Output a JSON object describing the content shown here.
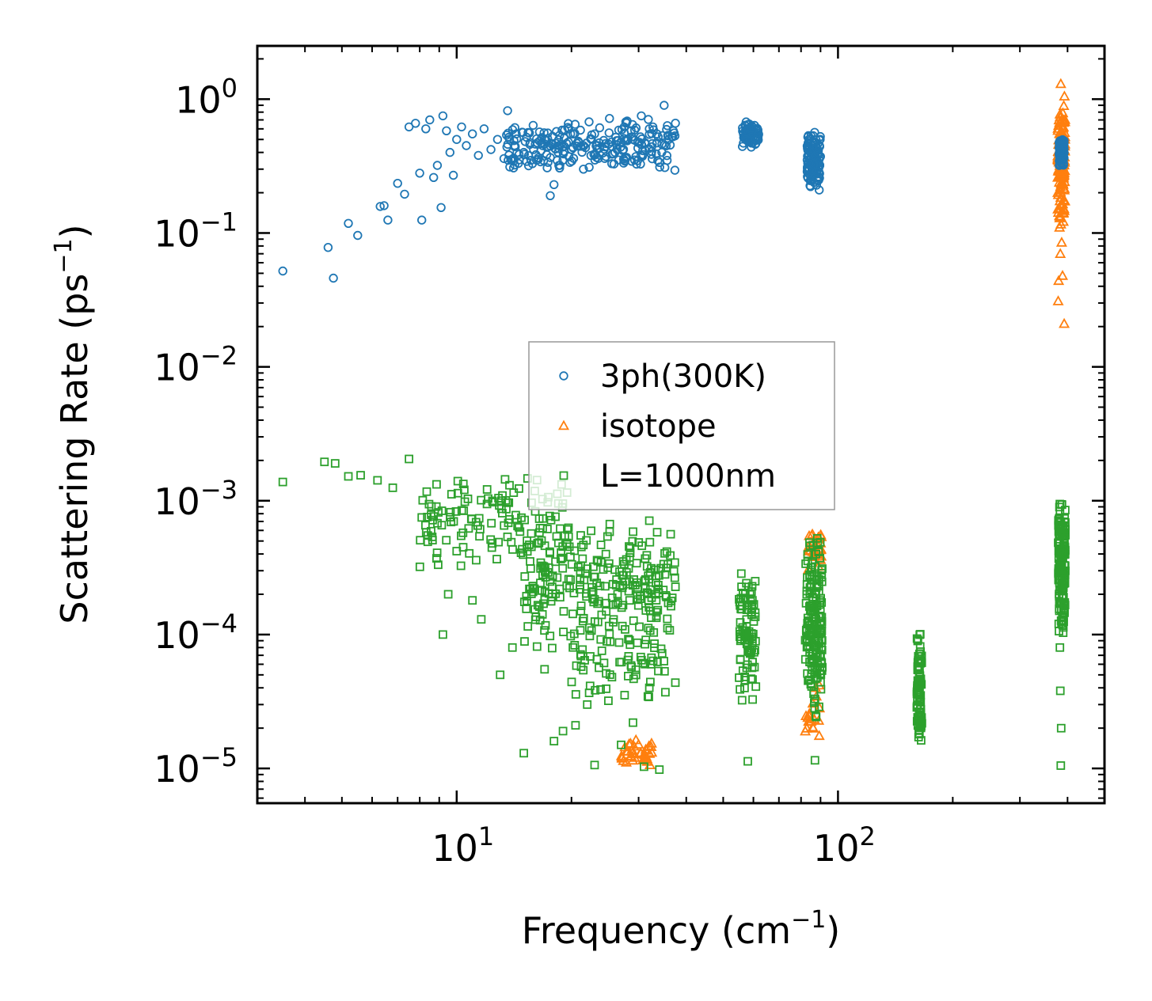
{
  "chart_data": {
    "type": "scatter",
    "xscale": "log",
    "yscale": "log",
    "xlim": [
      3.0,
      500
    ],
    "ylim": [
      5.5e-06,
      2.5
    ],
    "xlabel": {
      "text": "Frequency (cm",
      "sup": "−1",
      "close": ")"
    },
    "ylabel": {
      "text": "Scattering Rate (ps",
      "sup": "−1",
      "close": ")"
    },
    "x_ticks": [
      {
        "value": 10,
        "base": "10",
        "exp": "1"
      },
      {
        "value": 100,
        "base": "10",
        "exp": "2"
      }
    ],
    "y_ticks": [
      {
        "value": 1,
        "base": "10",
        "exp": "0"
      },
      {
        "value": 0.1,
        "base": "10",
        "exp": "−1"
      },
      {
        "value": 0.01,
        "base": "10",
        "exp": "−2"
      },
      {
        "value": 0.001,
        "base": "10",
        "exp": "−3"
      },
      {
        "value": 0.0001,
        "base": "10",
        "exp": "−4"
      },
      {
        "value": 1e-05,
        "base": "10",
        "exp": "−5"
      }
    ],
    "legend": {
      "position": "center",
      "entries": [
        {
          "label": "3ph(300K)",
          "series": "3ph",
          "color": "#1f77b4"
        },
        {
          "label": "isotope",
          "series": "isotope",
          "color": "#ff7f0e"
        },
        {
          "label": "L=1000nm",
          "series": "boundary",
          "color": "#2ca02c"
        }
      ]
    },
    "series": [
      {
        "name": "3ph(300K)",
        "marker": "circle",
        "color": "#1f77b4",
        "points": [
          [
            3.5,
            0.052
          ],
          [
            4.6,
            0.078
          ],
          [
            4.75,
            0.046
          ],
          [
            5.2,
            0.118
          ],
          [
            5.5,
            0.096
          ],
          [
            6.3,
            0.158
          ],
          [
            6.45,
            0.16
          ],
          [
            6.6,
            0.125
          ],
          [
            7.0,
            0.235
          ],
          [
            7.3,
            0.195
          ],
          [
            7.5,
            0.62
          ],
          [
            7.8,
            0.66
          ],
          [
            8.0,
            0.28
          ],
          [
            8.1,
            0.125
          ],
          [
            8.3,
            0.6
          ],
          [
            8.5,
            0.7
          ],
          [
            8.7,
            0.26
          ],
          [
            8.9,
            0.32
          ],
          [
            9.1,
            0.155
          ],
          [
            9.2,
            0.75
          ],
          [
            9.4,
            0.58
          ],
          [
            9.6,
            0.4
          ],
          [
            9.8,
            0.27
          ],
          [
            10.0,
            0.5
          ],
          [
            10.3,
            0.62
          ],
          [
            10.6,
            0.45
          ],
          [
            11.0,
            0.55
          ],
          [
            11.4,
            0.38
          ],
          [
            11.8,
            0.6
          ],
          [
            12.3,
            0.42
          ],
          [
            12.8,
            0.5
          ],
          [
            13.3,
            0.36
          ],
          [
            13.6,
            0.82
          ],
          [
            14.2,
            0.45
          ],
          [
            15.0,
            0.4
          ],
          [
            15.8,
            0.33
          ],
          [
            16.8,
            0.45
          ],
          [
            17.6,
            0.19
          ],
          [
            18.0,
            0.23
          ],
          [
            19.0,
            0.35
          ],
          [
            20.0,
            0.42
          ],
          [
            21.5,
            0.3
          ],
          [
            23.0,
            0.55
          ],
          [
            24.5,
            0.44
          ],
          [
            26.0,
            0.4
          ],
          [
            27.5,
            0.62
          ],
          [
            29.0,
            0.5
          ],
          [
            30.5,
            0.75
          ],
          [
            32.0,
            0.6
          ],
          [
            33.5,
            0.55
          ],
          [
            35.0,
            0.9
          ],
          [
            36.0,
            0.5
          ],
          [
            37.0,
            0.58
          ]
        ],
        "clusters": [
          {
            "xmin": 13.5,
            "xmax": 37.5,
            "ymin": 0.28,
            "ymax": 0.75,
            "n": 240
          },
          {
            "xmin": 56.0,
            "xmax": 62.0,
            "ymin": 0.42,
            "ymax": 0.7,
            "n": 70
          },
          {
            "xmin": 83.0,
            "xmax": 90.0,
            "ymin": 0.2,
            "ymax": 0.6,
            "n": 130
          },
          {
            "xmin": 380.0,
            "xmax": 392.0,
            "ymin": 0.3,
            "ymax": 0.55,
            "n": 90
          }
        ]
      },
      {
        "name": "isotope",
        "marker": "triangle",
        "color": "#ff7f0e",
        "points": [
          [
            384,
            1.3
          ],
          [
            381,
            0.11
          ],
          [
            383,
            0.07
          ],
          [
            379,
            0.044
          ],
          [
            378,
            0.031
          ],
          [
            392,
            0.021
          ],
          [
            388,
            0.048
          ],
          [
            386,
            0.085
          ],
          [
            390,
            0.14
          ]
        ],
        "clusters": [
          {
            "xmin": 377.0,
            "xmax": 394.0,
            "ymin": 0.1,
            "ymax": 1.15,
            "n": 160
          },
          {
            "xmin": 27.0,
            "xmax": 32.5,
            "ymin": 1.02e-05,
            "ymax": 1.65e-05,
            "n": 40
          },
          {
            "xmin": 83.0,
            "xmax": 91.0,
            "ymin": 0.00028,
            "ymax": 0.00065,
            "n": 30
          },
          {
            "xmin": 82.0,
            "xmax": 90.0,
            "ymin": 1.4e-05,
            "ymax": 5e-05,
            "n": 20
          }
        ]
      },
      {
        "name": "L=1000nm",
        "marker": "square",
        "color": "#2ca02c",
        "points": [
          [
            3.5,
            0.00138
          ],
          [
            4.5,
            0.00195
          ],
          [
            4.8,
            0.0019
          ],
          [
            5.2,
            0.00152
          ],
          [
            5.6,
            0.00155
          ],
          [
            6.2,
            0.00142
          ],
          [
            6.8,
            0.00125
          ],
          [
            7.5,
            0.00205
          ],
          [
            8.1,
            0.00075
          ],
          [
            8.4,
            0.00055
          ],
          [
            9.2,
            0.0001
          ],
          [
            9.5,
            0.0002
          ],
          [
            10.0,
            0.00042
          ],
          [
            11.0,
            0.00018
          ],
          [
            11.6,
            0.00013
          ],
          [
            12.4,
            0.00048
          ],
          [
            13.0,
            5e-05
          ],
          [
            14.0,
            8e-05
          ],
          [
            15.0,
            1.3e-05
          ],
          [
            16.0,
            0.00022
          ],
          [
            17.0,
            5.5e-05
          ],
          [
            18.0,
            1.6e-05
          ],
          [
            19.0,
            1.9e-05
          ],
          [
            20.5,
            2.1e-05
          ],
          [
            22.0,
            3e-05
          ],
          [
            23.0,
            1.06e-05
          ],
          [
            25.0,
            3.2e-05
          ],
          [
            27.0,
            1.5e-05
          ],
          [
            29.0,
            2.2e-05
          ],
          [
            31.0,
            1.03e-05
          ],
          [
            34.0,
            9.8e-06
          ],
          [
            32.0,
            4e-05
          ],
          [
            58.0,
            1.13e-05
          ],
          [
            87.0,
            1.15e-05
          ],
          [
            384.0,
            1.05e-05
          ],
          [
            383.0,
            3.8e-05
          ],
          [
            385.0,
            2e-05
          ],
          [
            382.0,
            8e-05
          ]
        ],
        "clusters": [
          {
            "xmin": 8.0,
            "xmax": 20.0,
            "ymin": 0.0003,
            "ymax": 0.0017,
            "n": 130
          },
          {
            "xmin": 15.0,
            "xmax": 37.5,
            "ymin": 7e-05,
            "ymax": 0.0008,
            "n": 260
          },
          {
            "xmin": 20.0,
            "xmax": 37.5,
            "ymin": 3e-05,
            "ymax": 0.00012,
            "n": 60
          },
          {
            "xmin": 55.0,
            "xmax": 61.0,
            "ymin": 3e-05,
            "ymax": 0.0003,
            "n": 90
          },
          {
            "xmin": 82.0,
            "xmax": 91.0,
            "ymin": 2e-05,
            "ymax": 0.0006,
            "n": 180
          },
          {
            "xmin": 161.0,
            "xmax": 166.0,
            "ymin": 1.35e-05,
            "ymax": 0.00012,
            "n": 90
          },
          {
            "xmin": 378.0,
            "xmax": 395.0,
            "ymin": 9e-05,
            "ymax": 0.0011,
            "n": 160
          }
        ]
      }
    ]
  }
}
